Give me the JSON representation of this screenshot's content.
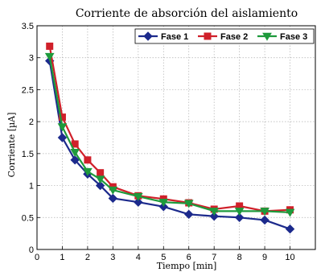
{
  "chart_data": {
    "type": "line",
    "title": "Corriente de absorción del aislamiento",
    "xlabel": "Tiempo [min]",
    "ylabel": "Corriente [µA]",
    "xlim": [
      0,
      11
    ],
    "ylim": [
      0,
      3.5
    ],
    "xticks": [
      0,
      1,
      2,
      3,
      4,
      5,
      6,
      7,
      8,
      9,
      10
    ],
    "yticks": [
      0,
      0.5,
      1,
      1.5,
      2,
      2.5,
      3,
      3.5
    ],
    "grid": true,
    "legend_position": "top-right",
    "x": [
      0.5,
      1,
      1.5,
      2,
      2.5,
      3,
      4,
      5,
      6,
      7,
      8,
      9,
      10
    ],
    "series": [
      {
        "name": "Fase 1",
        "color": "#1c2a8c",
        "marker": "diamond",
        "values": [
          2.95,
          1.75,
          1.4,
          1.18,
          1.0,
          0.8,
          0.74,
          0.67,
          0.55,
          0.52,
          0.5,
          0.46,
          0.32
        ]
      },
      {
        "name": "Fase 2",
        "color": "#d0202a",
        "marker": "square",
        "values": [
          3.18,
          2.07,
          1.65,
          1.4,
          1.2,
          0.98,
          0.84,
          0.79,
          0.73,
          0.63,
          0.68,
          0.6,
          0.62
        ]
      },
      {
        "name": "Fase 3",
        "color": "#1e9a3c",
        "marker": "triangle-down",
        "values": [
          3.02,
          1.92,
          1.52,
          1.22,
          1.1,
          0.93,
          0.83,
          0.74,
          0.72,
          0.6,
          0.6,
          0.6,
          0.58
        ]
      }
    ]
  }
}
